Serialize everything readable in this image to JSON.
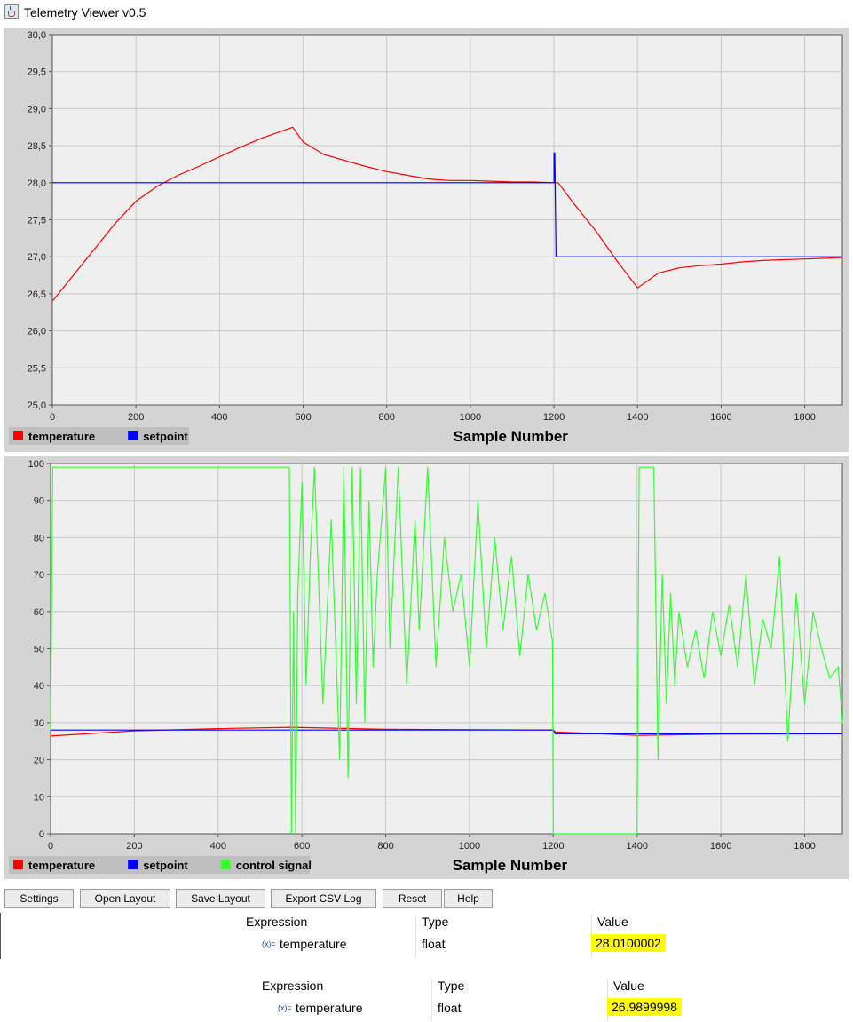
{
  "window": {
    "title": "Telemetry Viewer v0.5"
  },
  "charts": [
    {
      "x_axis_label": "Sample Number",
      "y_ticks": [
        "25,0",
        "25,5",
        "26,0",
        "26,5",
        "27,0",
        "27,5",
        "28,0",
        "28,5",
        "29,0",
        "29,5",
        "30,0"
      ],
      "x_ticks": [
        "0",
        "200",
        "400",
        "600",
        "800",
        "1000",
        "1200",
        "1400",
        "1600",
        "1800"
      ],
      "legend": [
        {
          "name": "temperature",
          "color": "#ff0000"
        },
        {
          "name": "setpoint",
          "color": "#0000ff"
        }
      ]
    },
    {
      "x_axis_label": "Sample Number",
      "y_ticks": [
        "0",
        "10",
        "20",
        "30",
        "40",
        "50",
        "60",
        "70",
        "80",
        "90",
        "100"
      ],
      "x_ticks": [
        "0",
        "200",
        "400",
        "600",
        "800",
        "1000",
        "1200",
        "1400",
        "1600",
        "1800"
      ],
      "legend": [
        {
          "name": "temperature",
          "color": "#ff0000"
        },
        {
          "name": "setpoint",
          "color": "#0000ff"
        },
        {
          "name": "control signal",
          "color": "#33ff33"
        }
      ]
    }
  ],
  "chart_data": [
    {
      "type": "line",
      "xlabel": "Sample Number",
      "ylabel": "",
      "xlim": [
        0,
        1890
      ],
      "ylim": [
        25.0,
        30.0
      ],
      "series": [
        {
          "name": "temperature",
          "color": "#ff0000",
          "x": [
            0,
            50,
            100,
            150,
            200,
            250,
            300,
            350,
            400,
            450,
            500,
            550,
            575,
            600,
            650,
            700,
            750,
            800,
            850,
            900,
            950,
            1000,
            1050,
            1100,
            1150,
            1200,
            1210,
            1250,
            1300,
            1350,
            1400,
            1450,
            1500,
            1550,
            1600,
            1650,
            1700,
            1750,
            1800,
            1850,
            1890
          ],
          "y": [
            26.4,
            26.75,
            27.1,
            27.45,
            27.75,
            27.95,
            28.1,
            28.22,
            28.35,
            28.48,
            28.6,
            28.7,
            28.75,
            28.55,
            28.38,
            28.3,
            28.22,
            28.15,
            28.1,
            28.05,
            28.03,
            28.03,
            28.02,
            28.01,
            28.01,
            28.0,
            28.0,
            27.7,
            27.35,
            26.95,
            26.58,
            26.78,
            26.85,
            26.88,
            26.9,
            26.93,
            26.95,
            26.96,
            26.97,
            26.98,
            26.99
          ]
        },
        {
          "name": "setpoint",
          "color": "#0000ff",
          "x": [
            0,
            1200,
            1200,
            1202,
            1205,
            1890
          ],
          "y": [
            28.0,
            28.0,
            28.4,
            28.4,
            27.0,
            27.0
          ]
        }
      ]
    },
    {
      "type": "line",
      "xlabel": "Sample Number",
      "ylabel": "",
      "xlim": [
        0,
        1890
      ],
      "ylim": [
        0,
        100
      ],
      "series": [
        {
          "name": "temperature",
          "color": "#ff0000",
          "x": [
            0,
            200,
            400,
            575,
            800,
            1200,
            1205,
            1400,
            1600,
            1890
          ],
          "y": [
            26.4,
            27.8,
            28.4,
            28.75,
            28.2,
            28.0,
            27.5,
            26.6,
            26.9,
            27.0
          ]
        },
        {
          "name": "setpoint",
          "color": "#0000ff",
          "x": [
            0,
            1200,
            1205,
            1890
          ],
          "y": [
            28,
            28,
            27,
            27
          ]
        },
        {
          "name": "control signal",
          "color": "#33ff33",
          "x": [
            0,
            5,
            570,
            575,
            580,
            585,
            590,
            600,
            610,
            620,
            630,
            650,
            670,
            690,
            700,
            710,
            720,
            730,
            740,
            750,
            760,
            770,
            780,
            800,
            810,
            830,
            850,
            870,
            880,
            900,
            920,
            940,
            960,
            980,
            1000,
            1020,
            1040,
            1060,
            1080,
            1100,
            1120,
            1140,
            1160,
            1180,
            1198,
            1200,
            1205,
            1210,
            1400,
            1405,
            1420,
            1440,
            1450,
            1460,
            1470,
            1480,
            1490,
            1500,
            1520,
            1540,
            1560,
            1580,
            1600,
            1620,
            1640,
            1660,
            1680,
            1700,
            1720,
            1740,
            1760,
            1780,
            1800,
            1820,
            1840,
            1860,
            1880,
            1890
          ],
          "y": [
            28,
            99,
            99,
            0,
            60,
            0,
            65,
            95,
            40,
            75,
            99,
            35,
            85,
            20,
            99,
            15,
            99,
            35,
            99,
            30,
            90,
            45,
            70,
            99,
            50,
            99,
            40,
            85,
            55,
            99,
            45,
            80,
            60,
            70,
            45,
            90,
            50,
            80,
            55,
            75,
            48,
            70,
            55,
            65,
            52,
            0,
            0,
            0,
            0,
            99,
            99,
            99,
            20,
            70,
            35,
            65,
            40,
            60,
            45,
            55,
            42,
            60,
            48,
            62,
            45,
            70,
            40,
            58,
            50,
            75,
            25,
            65,
            35,
            60,
            50,
            42,
            45,
            30
          ]
        }
      ]
    }
  ],
  "toolbar": {
    "buttons": [
      "Settings",
      "Open Layout",
      "Save Layout",
      "Export CSV Log",
      "Reset",
      "Help"
    ]
  },
  "watch1": {
    "headers": {
      "expression": "Expression",
      "type": "Type",
      "value": "Value"
    },
    "row": {
      "icon": "(x)=",
      "name": "temperature",
      "type": "float",
      "value": "28.0100002"
    }
  },
  "watch2": {
    "headers": {
      "expression": "Expression",
      "type": "Type",
      "value": "Value"
    },
    "row": {
      "icon": "(x)=",
      "name": "temperature",
      "type": "float",
      "value": "26.9899998"
    }
  }
}
